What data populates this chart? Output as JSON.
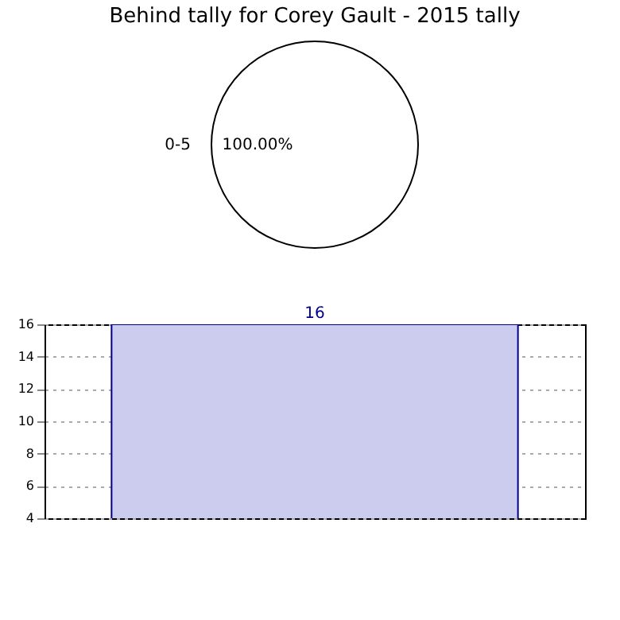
{
  "chart_data": [
    {
      "type": "pie",
      "title": "Behind tally for Corey Gault - 2015 tally",
      "categories": [
        "0-5"
      ],
      "values": [
        100
      ],
      "colors": [
        "#ffffff"
      ],
      "value_labels": [
        "100.00%"
      ]
    },
    {
      "type": "bar",
      "categories": [
        null
      ],
      "values": [
        16
      ],
      "color": "#ccccee",
      "ylim": [
        4,
        16
      ],
      "yticks": [
        4,
        6,
        8,
        10,
        12,
        14,
        16
      ],
      "grid": true,
      "data_labels": true
    }
  ]
}
